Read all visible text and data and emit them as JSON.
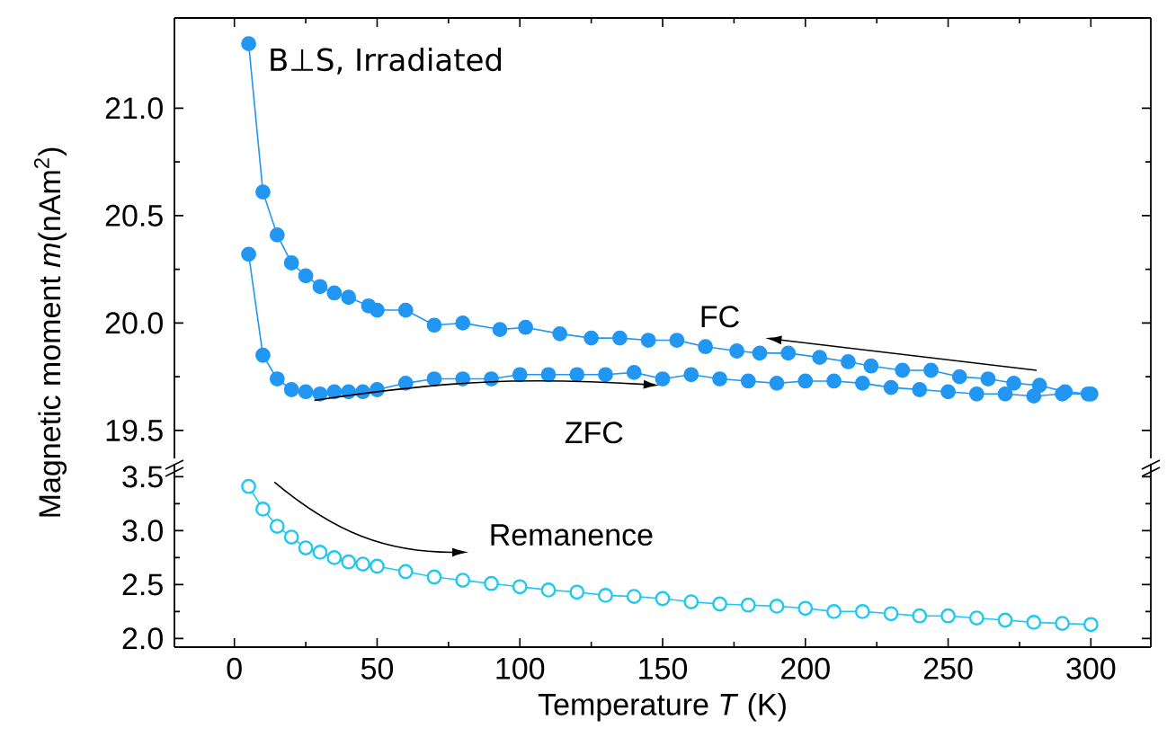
{
  "chart_data": [
    {
      "type": "line",
      "ylabel": "Magnetic moment *m*(nAm$^{2}$)",
      "annotations": [
        "B⊥S, Irradiated"
      ],
      "marker": "circle",
      "tick_labels": "y",
      "xlim": [
        -21,
        321
      ],
      "xticks": [
        0,
        50,
        100,
        150,
        200,
        250,
        300
      ],
      "ylim": [
        19.37,
        21.42
      ],
      "yticks": [
        {
          "value": 19.5,
          "label": "19.5"
        },
        {
          "value": 20.0,
          "label": "20.0"
        },
        {
          "value": 20.5,
          "label": "20.5"
        },
        {
          "value": 21.0,
          "label": "21.0"
        }
      ],
      "series": [
        {
          "name": "FC",
          "color": "#2196f3",
          "x": [
            5,
            10,
            15,
            20,
            25,
            30,
            35,
            40,
            47,
            50,
            60,
            70,
            80,
            93,
            102,
            114,
            125,
            135,
            145,
            155,
            165,
            176,
            184,
            194,
            205,
            215,
            223,
            234,
            244,
            254,
            264,
            273,
            282,
            291,
            299
          ],
          "values": [
            21.3,
            20.61,
            20.41,
            20.28,
            20.22,
            20.17,
            20.14,
            20.12,
            20.08,
            20.06,
            20.06,
            19.99,
            20.0,
            19.97,
            19.98,
            19.95,
            19.93,
            19.93,
            19.92,
            19.92,
            19.89,
            19.87,
            19.86,
            19.86,
            19.84,
            19.82,
            19.8,
            19.78,
            19.78,
            19.75,
            19.74,
            19.72,
            19.71,
            19.68,
            19.67
          ]
        },
        {
          "name": "ZFC",
          "color": "#2196f3",
          "x": [
            5,
            10,
            15,
            20,
            25,
            30,
            35,
            40,
            45,
            50,
            60,
            70,
            80,
            90,
            100,
            110,
            120,
            130,
            140,
            150,
            160,
            170,
            180,
            190,
            200,
            210,
            220,
            230,
            240,
            250,
            260,
            270,
            280,
            290,
            300
          ],
          "values": [
            20.32,
            19.85,
            19.74,
            19.69,
            19.68,
            19.67,
            19.68,
            19.68,
            19.68,
            19.69,
            19.72,
            19.74,
            19.74,
            19.74,
            19.76,
            19.76,
            19.76,
            19.76,
            19.77,
            19.74,
            19.76,
            19.74,
            19.73,
            19.72,
            19.73,
            19.73,
            19.72,
            19.7,
            19.69,
            19.68,
            19.67,
            19.67,
            19.66,
            19.67,
            19.67
          ]
        }
      ]
    },
    {
      "type": "line",
      "xlabel": "Temperature *T* (K)",
      "marker": "circle",
      "xlim": [
        -21,
        321
      ],
      "xticks": [
        0,
        50,
        100,
        150,
        200,
        250,
        300
      ],
      "ylim": [
        1.92,
        3.62
      ],
      "yticks": [
        {
          "value": 2.0,
          "label": "2.0"
        },
        {
          "value": 2.5,
          "label": "2.5"
        },
        {
          "value": 3.0,
          "label": "3.0"
        },
        {
          "value": 3.5,
          "label": "3.5"
        }
      ],
      "series": [
        {
          "name": "Remanence",
          "color": "#1ec8f0",
          "x": [
            5,
            10,
            15,
            20,
            25,
            30,
            35,
            40,
            45,
            50,
            60,
            70,
            80,
            90,
            100,
            110,
            120,
            130,
            140,
            150,
            160,
            170,
            180,
            190,
            200,
            210,
            220,
            230,
            240,
            250,
            260,
            270,
            280,
            290,
            300
          ],
          "values": [
            3.41,
            3.2,
            3.04,
            2.94,
            2.84,
            2.8,
            2.75,
            2.71,
            2.69,
            2.67,
            2.62,
            2.57,
            2.54,
            2.51,
            2.48,
            2.45,
            2.43,
            2.4,
            2.39,
            2.37,
            2.34,
            2.32,
            2.31,
            2.3,
            2.28,
            2.25,
            2.25,
            2.23,
            2.21,
            2.21,
            2.19,
            2.17,
            2.15,
            2.14,
            2.13
          ]
        }
      ]
    }
  ]
}
